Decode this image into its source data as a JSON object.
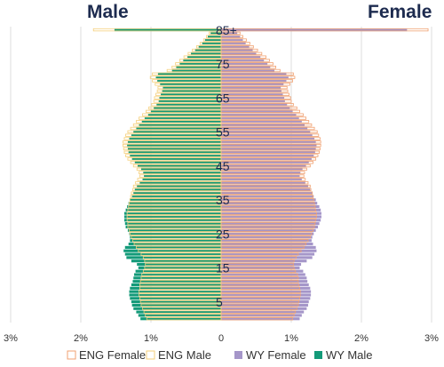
{
  "chart_data": {
    "type": "bar",
    "orientation": "horizontal-population-pyramid",
    "left_header": "Male",
    "right_header": "Female",
    "x_tick_labels": [
      "3%",
      "2%",
      "1%",
      "0",
      "1%",
      "2%",
      "3%"
    ],
    "xlim": [
      -3,
      3
    ],
    "x_unit": "percent of population",
    "age_labels": [
      "5",
      "15",
      "25",
      "35",
      "45",
      "55",
      "65",
      "75",
      "85+"
    ],
    "age_label_values": [
      5,
      15,
      25,
      35,
      45,
      55,
      65,
      75,
      85
    ],
    "ages": [
      0,
      1,
      2,
      3,
      4,
      5,
      6,
      7,
      8,
      9,
      10,
      11,
      12,
      13,
      14,
      15,
      16,
      17,
      18,
      19,
      20,
      21,
      22,
      23,
      24,
      25,
      26,
      27,
      28,
      29,
      30,
      31,
      32,
      33,
      34,
      35,
      36,
      37,
      38,
      39,
      40,
      41,
      42,
      43,
      44,
      45,
      46,
      47,
      48,
      49,
      50,
      51,
      52,
      53,
      54,
      55,
      56,
      57,
      58,
      59,
      60,
      61,
      62,
      63,
      64,
      65,
      66,
      67,
      68,
      69,
      70,
      71,
      72,
      73,
      74,
      75,
      76,
      77,
      78,
      79,
      80,
      81,
      82,
      83,
      84,
      85
    ],
    "grid": true,
    "legend_position": "bottom",
    "series": [
      {
        "name": "ENG Female",
        "style": "outline",
        "color": "#f0a070",
        "values": [
          1.02,
          1.04,
          1.06,
          1.08,
          1.1,
          1.11,
          1.12,
          1.13,
          1.13,
          1.12,
          1.11,
          1.1,
          1.1,
          1.09,
          1.06,
          1.04,
          1.03,
          1.04,
          1.07,
          1.1,
          1.14,
          1.18,
          1.21,
          1.24,
          1.27,
          1.29,
          1.31,
          1.33,
          1.34,
          1.35,
          1.36,
          1.36,
          1.35,
          1.34,
          1.33,
          1.32,
          1.31,
          1.3,
          1.28,
          1.27,
          1.24,
          1.2,
          1.18,
          1.19,
          1.22,
          1.27,
          1.31,
          1.35,
          1.38,
          1.4,
          1.41,
          1.42,
          1.42,
          1.41,
          1.39,
          1.37,
          1.33,
          1.29,
          1.25,
          1.21,
          1.17,
          1.12,
          1.08,
          1.03,
          1.0,
          0.99,
          0.97,
          0.95,
          0.94,
          0.98,
          1.02,
          1.05,
          1.03,
          0.84,
          0.78,
          0.74,
          0.69,
          0.64,
          0.58,
          0.52,
          0.46,
          0.41,
          0.36,
          0.31,
          0.27,
          2.95
        ]
      },
      {
        "name": "ENG Male",
        "style": "outline",
        "color": "#f5cf7a",
        "values": [
          1.06,
          1.08,
          1.1,
          1.12,
          1.14,
          1.15,
          1.16,
          1.17,
          1.17,
          1.16,
          1.16,
          1.15,
          1.14,
          1.13,
          1.11,
          1.09,
          1.08,
          1.09,
          1.11,
          1.14,
          1.18,
          1.21,
          1.24,
          1.26,
          1.28,
          1.3,
          1.31,
          1.33,
          1.33,
          1.34,
          1.34,
          1.34,
          1.33,
          1.32,
          1.31,
          1.3,
          1.29,
          1.28,
          1.26,
          1.25,
          1.22,
          1.19,
          1.16,
          1.17,
          1.2,
          1.25,
          1.29,
          1.33,
          1.36,
          1.38,
          1.39,
          1.4,
          1.4,
          1.38,
          1.36,
          1.33,
          1.29,
          1.25,
          1.21,
          1.17,
          1.12,
          1.07,
          1.03,
          0.99,
          0.96,
          0.95,
          0.93,
          0.91,
          0.9,
          0.94,
          0.98,
          1.01,
          0.98,
          0.77,
          0.7,
          0.65,
          0.59,
          0.53,
          0.47,
          0.41,
          0.35,
          0.3,
          0.25,
          0.21,
          0.17,
          1.82
        ]
      },
      {
        "name": "WY Female",
        "style": "filled",
        "color": "#a596c9",
        "values": [
          1.12,
          1.15,
          1.18,
          1.22,
          1.24,
          1.25,
          1.27,
          1.28,
          1.28,
          1.27,
          1.25,
          1.23,
          1.22,
          1.2,
          1.17,
          1.12,
          1.14,
          1.22,
          1.3,
          1.33,
          1.36,
          1.35,
          1.31,
          1.29,
          1.3,
          1.32,
          1.35,
          1.38,
          1.4,
          1.42,
          1.43,
          1.43,
          1.42,
          1.4,
          1.37,
          1.35,
          1.32,
          1.3,
          1.27,
          1.24,
          1.2,
          1.15,
          1.12,
          1.13,
          1.16,
          1.21,
          1.25,
          1.29,
          1.32,
          1.34,
          1.35,
          1.36,
          1.35,
          1.33,
          1.3,
          1.27,
          1.23,
          1.19,
          1.15,
          1.11,
          1.07,
          1.02,
          0.98,
          0.94,
          0.91,
          0.9,
          0.88,
          0.86,
          0.85,
          0.89,
          0.93,
          0.96,
          0.93,
          0.76,
          0.7,
          0.66,
          0.61,
          0.56,
          0.5,
          0.45,
          0.4,
          0.35,
          0.31,
          0.27,
          0.23,
          2.65
        ]
      },
      {
        "name": "WY Male",
        "style": "filled",
        "color": "#139a79",
        "values": [
          1.15,
          1.18,
          1.21,
          1.25,
          1.27,
          1.28,
          1.3,
          1.31,
          1.31,
          1.3,
          1.28,
          1.26,
          1.25,
          1.24,
          1.22,
          1.18,
          1.2,
          1.28,
          1.35,
          1.37,
          1.39,
          1.37,
          1.32,
          1.3,
          1.3,
          1.31,
          1.33,
          1.36,
          1.37,
          1.38,
          1.38,
          1.38,
          1.36,
          1.34,
          1.32,
          1.3,
          1.27,
          1.25,
          1.23,
          1.2,
          1.16,
          1.12,
          1.1,
          1.11,
          1.14,
          1.19,
          1.23,
          1.27,
          1.3,
          1.32,
          1.33,
          1.34,
          1.33,
          1.31,
          1.28,
          1.25,
          1.21,
          1.17,
          1.13,
          1.09,
          1.04,
          1.0,
          0.96,
          0.92,
          0.89,
          0.88,
          0.86,
          0.84,
          0.83,
          0.87,
          0.91,
          0.93,
          0.9,
          0.7,
          0.64,
          0.59,
          0.54,
          0.48,
          0.43,
          0.37,
          0.32,
          0.27,
          0.23,
          0.19,
          0.15,
          1.52
        ]
      }
    ]
  }
}
